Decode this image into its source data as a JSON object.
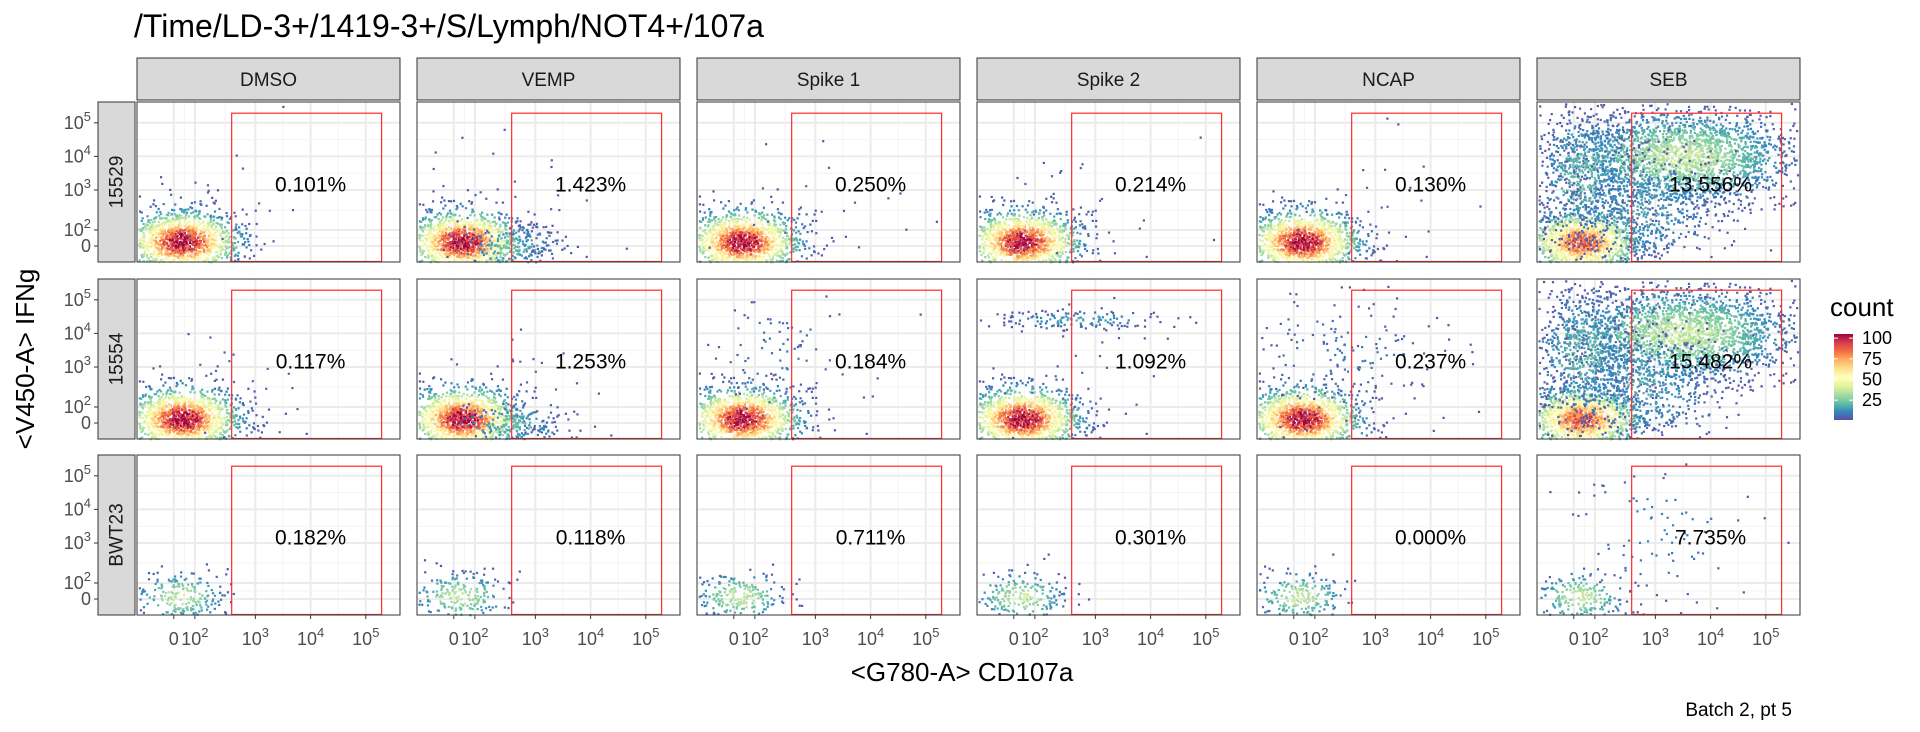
{
  "chart_data": {
    "type": "heatmap",
    "title": "/Time/LD-3+/1419-3+/S/Lymph/NOT4+/107a",
    "xlabel": "<G780-A> CD107a",
    "ylabel": "<V450-A> IFNg",
    "caption": "Batch 2, pt 5",
    "x_scale": "biexponential",
    "y_scale": "biexponential",
    "x_ticks": [
      {
        "value": "0",
        "sup": ""
      },
      {
        "value": "10",
        "sup": "2"
      },
      {
        "value": "10",
        "sup": "3"
      },
      {
        "value": "10",
        "sup": "4"
      },
      {
        "value": "10",
        "sup": "5"
      }
    ],
    "y_ticks": [
      {
        "value": "0",
        "sup": ""
      },
      {
        "value": "10",
        "sup": "2"
      },
      {
        "value": "10",
        "sup": "3"
      },
      {
        "value": "10",
        "sup": "4"
      },
      {
        "value": "10",
        "sup": "5"
      }
    ],
    "columns": [
      "DMSO",
      "VEMP",
      "Spike 1",
      "Spike 2",
      "NCAP",
      "SEB"
    ],
    "rows": [
      "15529",
      "15554",
      "BWT23"
    ],
    "gate": {
      "x_range": [
        "500",
        "200000"
      ],
      "y_range": [
        "-",
        "200000"
      ],
      "color": "#ff2a2a"
    },
    "gate_percentages": [
      [
        "0.101%",
        "1.423%",
        "0.250%",
        "0.214%",
        "0.130%",
        "13.556%"
      ],
      [
        "0.117%",
        "1.253%",
        "0.184%",
        "1.092%",
        "0.237%",
        "15.482%"
      ],
      [
        "0.182%",
        "0.118%",
        "0.711%",
        "0.301%",
        "0.000%",
        "7.735%"
      ]
    ],
    "legend": {
      "title": "count",
      "breaks": [
        "25",
        "50",
        "75",
        "100"
      ],
      "range": [
        1,
        105
      ],
      "palette": [
        "#5e4fa2",
        "#3288bd",
        "#66c2a5",
        "#abdda4",
        "#e6f598",
        "#ffffbf",
        "#fee08b",
        "#fdae61",
        "#f46d43",
        "#d53e4f",
        "#9e0142"
      ],
      "position": "right"
    },
    "grid": true,
    "theme": {
      "strip_fill": "#d9d9d9",
      "grid_color": "#ebebeb",
      "panel_border": "#333333"
    }
  }
}
